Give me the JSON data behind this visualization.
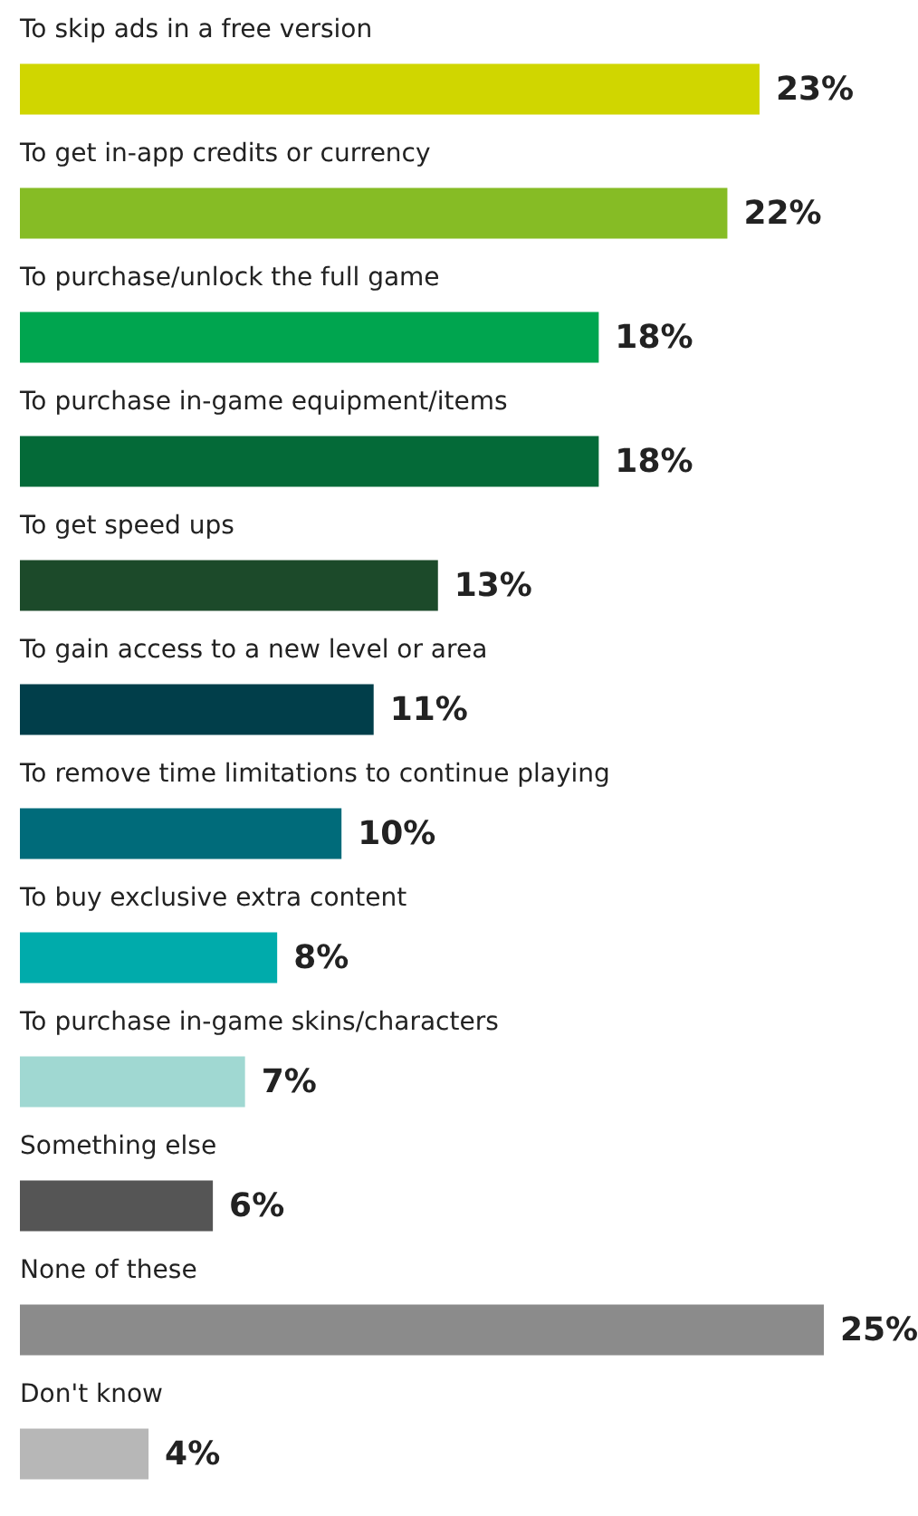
{
  "chart_data": {
    "type": "bar",
    "orientation": "horizontal",
    "categories": [
      "To skip ads in a free version",
      "To get in-app credits or currency",
      "To purchase/unlock the full game",
      "To purchase in-game equipment/items",
      "To get speed ups",
      "To gain access to a new level or area",
      "To remove time limitations to continue playing",
      "To buy exclusive extra content",
      "To purchase in-game skins/characters",
      "Something else",
      "None of these",
      "Don't know"
    ],
    "values": [
      23,
      22,
      18,
      18,
      13,
      11,
      10,
      8,
      7,
      6,
      25,
      4
    ],
    "value_labels": [
      "23%",
      "22%",
      "18%",
      "18%",
      "13%",
      "11%",
      "10%",
      "8%",
      "7%",
      "6%",
      "25%",
      "4%"
    ],
    "colors": [
      "#d0d600",
      "#86bc25",
      "#00a54f",
      "#046a38",
      "#1c4a2a",
      "#013e4a",
      "#006b7a",
      "#00abab",
      "#a0d8d2",
      "#555555",
      "#8b8b8b",
      "#b7b7b7"
    ]
  }
}
